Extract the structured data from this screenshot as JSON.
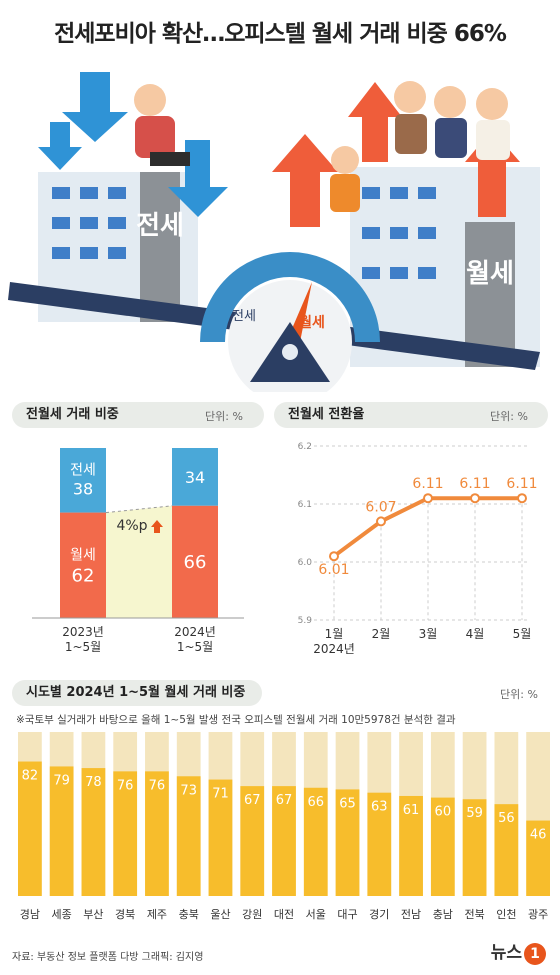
{
  "title": "전세포비아 확산…오피스텔 월세 거래 비중 66%",
  "illustration": {
    "jeonse_label": "전세",
    "wolse_label": "월세",
    "gauge_left": "전세",
    "gauge_right": "월세"
  },
  "panel1": {
    "heading": "전월세 거래 비중",
    "unit": "단위: %",
    "change_label": "4%p"
  },
  "panel2": {
    "heading": "전월세 전환율",
    "unit": "단위: %"
  },
  "panel3": {
    "heading": "시도별 2024년 1~5월 월세 거래 비중",
    "unit": "단위: %",
    "note": "※국토부 실거래가 바탕으로 올해 1~5월 발생 전국 오피스텔 전월세 거래 10만5978건 분석한 결과"
  },
  "footer": {
    "source": "자료: 부동산 정보 플랫폼 다방   그래픽: 김지영",
    "logo_text": "뉴스",
    "logo_badge": "1"
  },
  "colors": {
    "jeonse": "#4aa8d8",
    "wolse": "#f26a4b",
    "bar": "#f7bd2c",
    "bar_bg": "#f4e5bd",
    "line": "#f08a3c"
  },
  "chart_data": [
    {
      "type": "bar",
      "stacked": true,
      "categories": [
        "2023년\n1~5월",
        "2024년\n1~5월"
      ],
      "series": [
        {
          "name": "월세",
          "values": [
            62,
            66
          ]
        },
        {
          "name": "전세",
          "values": [
            38,
            34
          ]
        }
      ],
      "ylim": [
        0,
        100
      ]
    },
    {
      "type": "line",
      "x": [
        "1월\n2024년",
        "2월",
        "3월",
        "4월",
        "5월"
      ],
      "values": [
        6.01,
        6.07,
        6.11,
        6.11,
        6.11
      ],
      "yticks": [
        5.9,
        6.0,
        6.1,
        6.2
      ],
      "ylim": [
        5.9,
        6.2
      ]
    },
    {
      "type": "bar",
      "categories": [
        "경남",
        "세종",
        "부산",
        "경북",
        "제주",
        "충북",
        "울산",
        "강원",
        "대전",
        "서울",
        "대구",
        "경기",
        "전남",
        "충남",
        "전북",
        "인천",
        "광주"
      ],
      "values": [
        82,
        79,
        78,
        76,
        76,
        73,
        71,
        67,
        67,
        66,
        65,
        63,
        61,
        60,
        59,
        56,
        46
      ],
      "ylim": [
        0,
        100
      ]
    }
  ]
}
